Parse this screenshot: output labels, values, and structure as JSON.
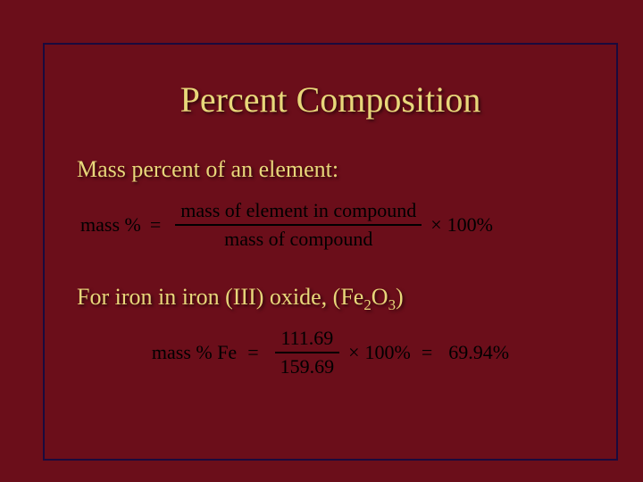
{
  "slide": {
    "background_color": "#6b0e1a",
    "frame_border_color": "#1a0a3d",
    "text_color_accent": "#e8d77a",
    "text_color_formula": "#000000",
    "title": "Percent Composition",
    "line1": "Mass percent of an element:",
    "formula1": {
      "lhs": "mass %",
      "eq": "=",
      "numerator": "mass of element in compound",
      "denominator": "mass of compound",
      "times": "×",
      "hundred": "100%"
    },
    "line2_prefix": "For iron in iron (III) oxide, (Fe",
    "line2_sub1": "2",
    "line2_mid": "O",
    "line2_sub2": "3",
    "line2_suffix": ")",
    "formula2": {
      "lhs": "mass % Fe",
      "eq1": "=",
      "numerator": "111.69",
      "denominator": "159.69",
      "times": "×",
      "hundred": "100%",
      "eq2": "=",
      "result": "69.94%"
    }
  }
}
